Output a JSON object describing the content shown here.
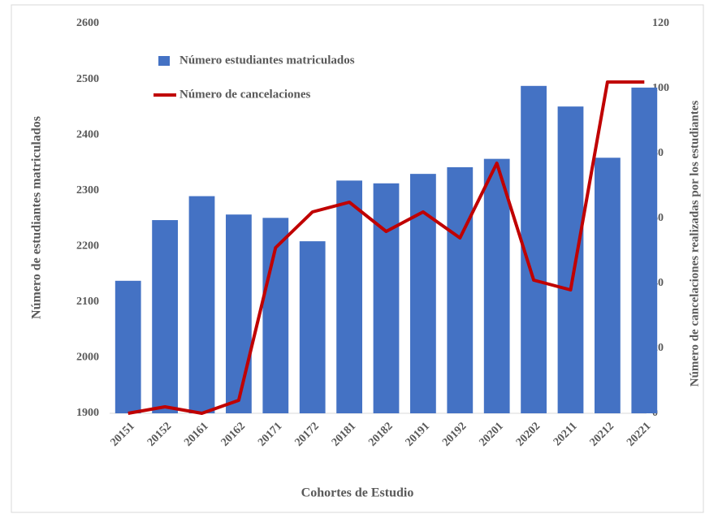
{
  "chart_data": {
    "type": "bar_line",
    "x_label": "Cohortes de Estudio",
    "y_label": "Número de estudiantes matriculados",
    "y2_label": "Número de cancelaciones realizadas  por los estudiantes",
    "categories": [
      "20151",
      "20152",
      "20161",
      "20162",
      "20171",
      "20172",
      "20181",
      "20182",
      "20191",
      "20192",
      "20201",
      "20202",
      "20211",
      "20212",
      "20221"
    ],
    "series": [
      {
        "name": "Número estudiantes matriculados",
        "type": "bar",
        "color": "#4472c4",
        "values": [
          2138,
          2247,
          2290,
          2257,
          2251,
          2209,
          2318,
          2313,
          2330,
          2342,
          2357,
          2488,
          2451,
          2359,
          2485
        ]
      },
      {
        "name": "Número de cancelaciones",
        "type": "line",
        "axis": "y2",
        "color": "#c00000",
        "values": [
          0,
          2,
          0,
          4,
          51,
          62,
          65,
          56,
          62,
          54,
          77,
          41,
          38,
          102,
          102
        ]
      }
    ],
    "ylim": [
      1900,
      2600
    ],
    "yticks": [
      1900,
      2000,
      2100,
      2200,
      2300,
      2400,
      2500,
      2600
    ],
    "y2lim": [
      0,
      120
    ],
    "y2ticks": [
      0,
      20,
      40,
      60,
      80,
      100,
      120
    ],
    "legend": "upper left"
  }
}
